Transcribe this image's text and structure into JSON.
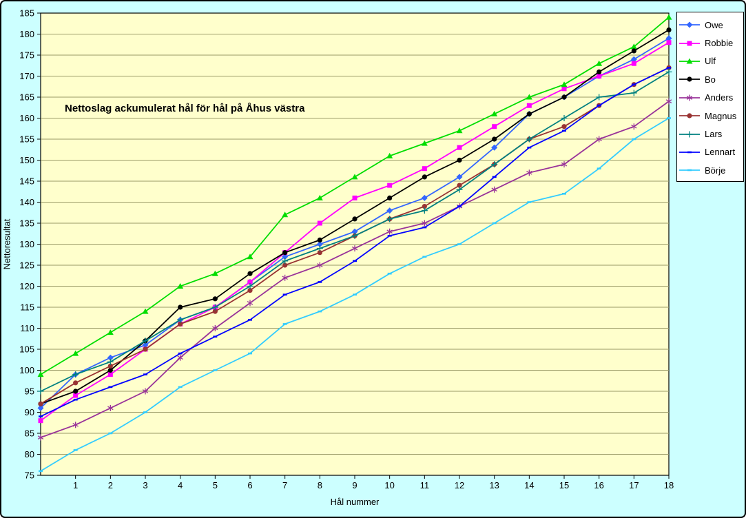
{
  "chart_data": {
    "type": "line",
    "title": "Nettoslag ackumulerat hål för hål på Åhus västra",
    "xlabel": "Hål nummer",
    "ylabel": "Nettoresultat",
    "ylim": [
      75,
      185
    ],
    "y_ticks": [
      75,
      80,
      85,
      90,
      95,
      100,
      105,
      110,
      115,
      120,
      125,
      130,
      135,
      140,
      145,
      150,
      155,
      160,
      165,
      170,
      175,
      180,
      185
    ],
    "x_ticks": [
      1,
      2,
      3,
      4,
      5,
      6,
      7,
      8,
      9,
      10,
      11,
      12,
      13,
      14,
      15,
      16,
      17,
      18
    ],
    "x": [
      0,
      1,
      2,
      3,
      4,
      5,
      6,
      7,
      8,
      9,
      10,
      11,
      12,
      13,
      14,
      15,
      16,
      17,
      18
    ],
    "grid": "horizontal",
    "legend_position": "right",
    "plot_bg": "#FFFFCC",
    "chart_bg": "#CCFFFF",
    "grid_color": "#999966",
    "axis_color": "#000000",
    "series": [
      {
        "name": "Owe",
        "color": "#3366FF",
        "marker": "diamond",
        "values": [
          91,
          99,
          103,
          106,
          112,
          115,
          121,
          127,
          130,
          133,
          138,
          141,
          146,
          153,
          161,
          165,
          170,
          174,
          179
        ]
      },
      {
        "name": "Robbie",
        "color": "#FF00FF",
        "marker": "square",
        "values": [
          88,
          94,
          99,
          105,
          111,
          115,
          121,
          128,
          135,
          141,
          144,
          148,
          153,
          158,
          163,
          167,
          170,
          173,
          178
        ]
      },
      {
        "name": "Ulf",
        "color": "#00DD00",
        "marker": "triangle",
        "values": [
          99,
          104,
          109,
          114,
          120,
          123,
          127,
          137,
          141,
          146,
          151,
          154,
          157,
          161,
          165,
          168,
          173,
          177,
          184
        ]
      },
      {
        "name": "Bo",
        "color": "#000000",
        "marker": "circle",
        "values": [
          92,
          95,
          100,
          107,
          115,
          117,
          123,
          128,
          131,
          136,
          141,
          146,
          150,
          155,
          161,
          165,
          171,
          176,
          181
        ]
      },
      {
        "name": "Anders",
        "color": "#993399",
        "marker": "asterisk",
        "values": [
          84,
          87,
          91,
          95,
          103,
          110,
          116,
          122,
          125,
          129,
          133,
          135,
          139,
          143,
          147,
          149,
          155,
          158,
          164
        ]
      },
      {
        "name": "Magnus",
        "color": "#993333",
        "marker": "circle",
        "values": [
          92,
          97,
          101,
          105,
          111,
          114,
          119,
          125,
          128,
          132,
          136,
          139,
          144,
          149,
          155,
          158,
          163,
          168,
          172
        ]
      },
      {
        "name": "Lars",
        "color": "#008080",
        "marker": "plus",
        "values": [
          95,
          99,
          102,
          107,
          112,
          115,
          120,
          126,
          129,
          132,
          136,
          138,
          143,
          149,
          155,
          160,
          165,
          166,
          171
        ]
      },
      {
        "name": "Lennart",
        "color": "#0000FF",
        "marker": "dash",
        "values": [
          89,
          93,
          96,
          99,
          104,
          108,
          112,
          118,
          121,
          126,
          132,
          134,
          139,
          146,
          153,
          157,
          163,
          168,
          172
        ]
      },
      {
        "name": "Börje",
        "color": "#33CCFF",
        "marker": "dash",
        "values": [
          76,
          81,
          85,
          90,
          96,
          100,
          104,
          111,
          114,
          118,
          123,
          127,
          130,
          135,
          140,
          142,
          148,
          155,
          160
        ]
      }
    ]
  }
}
